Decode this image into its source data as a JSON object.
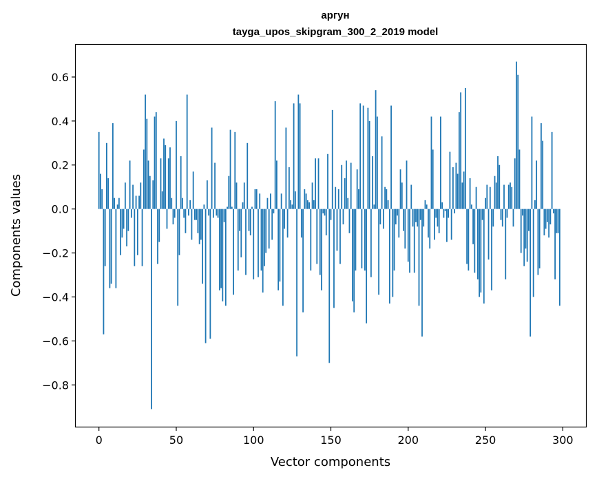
{
  "chart_data": {
    "type": "bar",
    "title": "аргун",
    "subtitle": "tayga_upos_skipgram_300_2_2019 model",
    "xlabel": "Vector components",
    "ylabel": "Components values",
    "xlim": [
      -15,
      315
    ],
    "ylim": [
      -0.99,
      0.75
    ],
    "xticks": [
      0,
      50,
      100,
      150,
      200,
      250,
      300
    ],
    "yticks": [
      -0.8,
      -0.6,
      -0.4,
      -0.2,
      0.0,
      0.2,
      0.4,
      0.6
    ],
    "ytick_labels": [
      "−0.8",
      "−0.6",
      "−0.4",
      "−0.2",
      "0.0",
      "0.2",
      "0.4",
      "0.6"
    ],
    "grid": false,
    "bar_color": "#1f77b4",
    "values": [
      0.35,
      0.16,
      0.09,
      -0.57,
      -0.26,
      0.3,
      0.14,
      -0.36,
      -0.34,
      0.39,
      0.05,
      -0.36,
      0.02,
      0.05,
      -0.21,
      -0.13,
      -0.09,
      0.12,
      -0.17,
      -0.1,
      0.22,
      -0.04,
      0.11,
      -0.26,
      0.06,
      -0.21,
      0.06,
      0.12,
      -0.26,
      0.27,
      0.52,
      0.41,
      0.22,
      0.15,
      -0.91,
      0.13,
      0.42,
      0.44,
      -0.25,
      -0.15,
      0.23,
      0.08,
      0.32,
      0.29,
      -0.09,
      0.23,
      0.28,
      0.05,
      -0.07,
      -0.04,
      0.4,
      -0.44,
      -0.21,
      0.24,
      0.05,
      -0.04,
      -0.11,
      0.52,
      -0.03,
      0.04,
      -0.14,
      0.17,
      -0.05,
      -0.05,
      -0.11,
      -0.16,
      -0.14,
      -0.34,
      0.02,
      -0.61,
      0.13,
      -0.03,
      -0.59,
      0.37,
      -0.04,
      0.21,
      -0.03,
      -0.04,
      -0.37,
      -0.36,
      -0.42,
      -0.06,
      -0.44,
      0.01,
      0.15,
      0.36,
      0.01,
      -0.39,
      0.35,
      0.12,
      -0.28,
      -0.1,
      -0.22,
      0.03,
      0.12,
      -0.3,
      0.3,
      -0.1,
      -0.12,
      0.01,
      -0.32,
      0.09,
      0.09,
      -0.31,
      0.07,
      -0.28,
      -0.38,
      -0.26,
      -0.2,
      0.05,
      -0.18,
      0.07,
      -0.14,
      -0.02,
      0.49,
      0.22,
      -0.37,
      -0.33,
      0.07,
      -0.44,
      -0.09,
      0.37,
      -0.13,
      0.19,
      0.04,
      0.02,
      0.48,
      0.08,
      -0.67,
      0.52,
      0.48,
      -0.13,
      -0.47,
      0.09,
      0.07,
      0.04,
      0.03,
      -0.28,
      0.12,
      0.04,
      0.23,
      -0.25,
      0.23,
      -0.3,
      -0.37,
      -0.02,
      -0.03,
      -0.12,
      0.25,
      -0.7,
      -0.05,
      0.45,
      -0.45,
      0.1,
      -0.19,
      0.09,
      -0.25,
      0.2,
      -0.07,
      0.14,
      0.22,
      0.05,
      -0.11,
      0.21,
      -0.42,
      -0.47,
      -0.28,
      0.18,
      0.09,
      0.48,
      -0.27,
      0.47,
      -0.28,
      -0.52,
      0.46,
      0.4,
      -0.31,
      0.24,
      0.02,
      0.54,
      0.42,
      -0.39,
      -0.07,
      0.33,
      -0.09,
      0.1,
      0.09,
      0.04,
      -0.43,
      0.47,
      -0.4,
      -0.28,
      -0.07,
      -0.03,
      -0.13,
      0.18,
      0.12,
      -0.1,
      -0.18,
      0.22,
      -0.24,
      -0.29,
      0.11,
      -0.08,
      -0.29,
      -0.06,
      -0.08,
      -0.44,
      -0.05,
      -0.58,
      -0.08,
      0.04,
      0.02,
      -0.13,
      -0.18,
      0.42,
      0.27,
      -0.14,
      -0.04,
      -0.08,
      -0.11,
      0.42,
      0.03,
      -0.04,
      -0.01,
      -0.15,
      -0.04,
      0.26,
      -0.14,
      0.19,
      -0.02,
      0.21,
      0.16,
      0.44,
      0.53,
      0.12,
      0.17,
      0.55,
      -0.25,
      -0.28,
      0.14,
      0.02,
      -0.16,
      -0.29,
      0.1,
      -0.32,
      -0.4,
      -0.38,
      -0.05,
      -0.43,
      0.05,
      0.11,
      -0.23,
      0.1,
      -0.37,
      -0.08,
      0.15,
      0.12,
      0.24,
      0.2,
      -0.05,
      -0.08,
      0.11,
      -0.32,
      -0.04,
      0.11,
      0.12,
      0.1,
      -0.08,
      0.23,
      0.67,
      0.61,
      0.27,
      -0.2,
      -0.03,
      -0.26,
      -0.18,
      -0.24,
      -0.1,
      -0.58,
      0.42,
      -0.4,
      0.04,
      0.22,
      -0.3,
      -0.27,
      0.39,
      0.31,
      -0.12,
      -0.09,
      -0.06,
      -0.13,
      -0.07,
      0.35,
      -0.02,
      -0.32,
      -0.11,
      -0.11,
      -0.44
    ]
  }
}
